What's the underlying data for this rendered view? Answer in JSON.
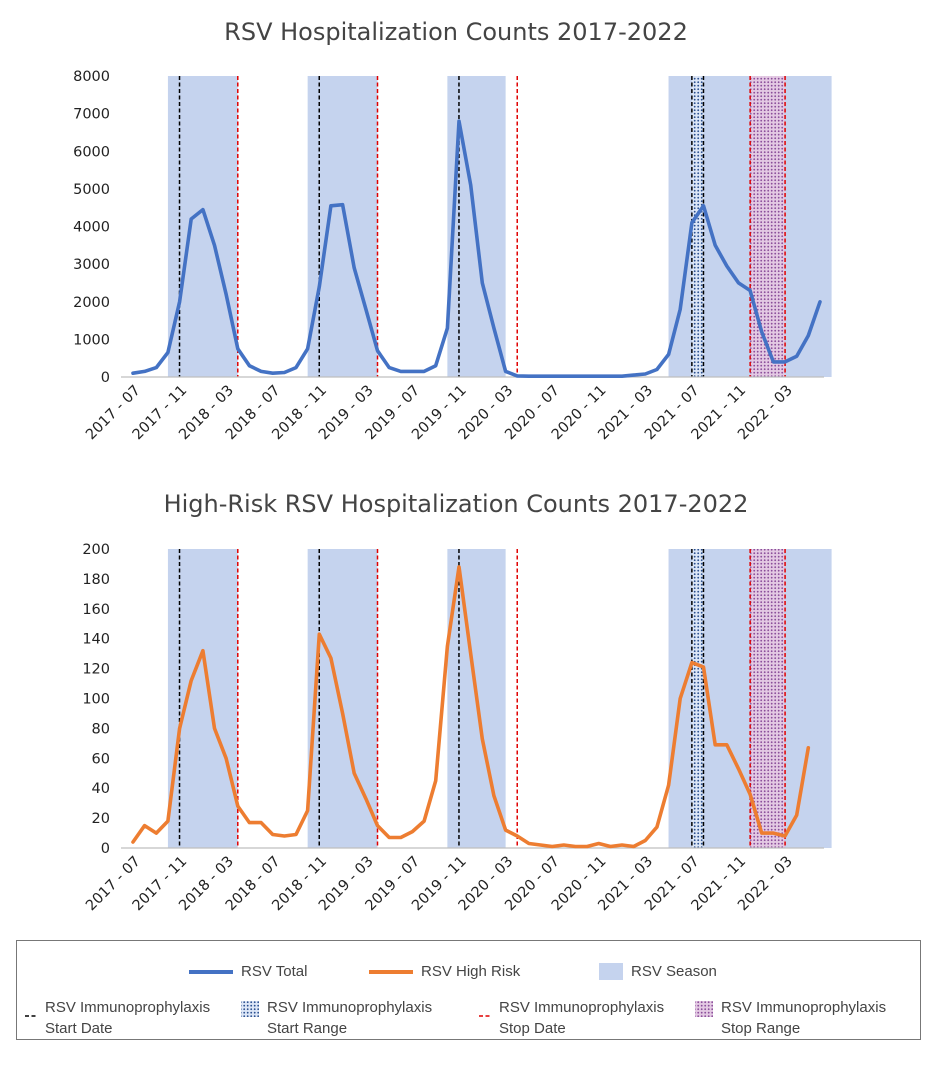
{
  "chart_data": [
    {
      "type": "line",
      "title": "RSV Hospitalization Counts 2017-2022",
      "ylim": [
        0,
        8000
      ],
      "yticks": [
        "0",
        "1000",
        "2000",
        "3000",
        "4000",
        "5000",
        "6000",
        "7000",
        "8000"
      ],
      "xtick_labels": [
        "2017 - 07",
        "2017 - 11",
        "2018 - 03",
        "2018 - 07",
        "2018 - 11",
        "2019 - 03",
        "2019 - 07",
        "2019 - 11",
        "2020 - 03",
        "2020 - 07",
        "2020 - 11",
        "2021 - 03",
        "2021 - 07",
        "2021 - 11",
        "2022 - 03"
      ],
      "series": [
        {
          "name": "RSV Total",
          "color": "#4472C4",
          "values": [
            100,
            150,
            250,
            650,
            2000,
            4200,
            4450,
            3500,
            2200,
            750,
            300,
            150,
            100,
            120,
            250,
            750,
            2400,
            4550,
            4580,
            2900,
            1800,
            700,
            250,
            150,
            150,
            150,
            300,
            1300,
            6800,
            5100,
            2500,
            1300,
            150,
            30,
            20,
            20,
            20,
            20,
            20,
            20,
            20,
            20,
            20,
            50,
            80,
            200,
            600,
            1800,
            4100,
            4550,
            3500,
            2950,
            2500,
            2300,
            1200,
            400,
            400,
            550,
            1100,
            2000
          ]
        }
      ]
    },
    {
      "type": "line",
      "title": "High-Risk RSV Hospitalization Counts 2017-2022",
      "ylim": [
        0,
        200
      ],
      "yticks": [
        "0",
        "20",
        "40",
        "60",
        "80",
        "100",
        "120",
        "140",
        "160",
        "180",
        "200"
      ],
      "xtick_labels": [
        "2017 - 07",
        "2017 - 11",
        "2018 - 03",
        "2018 - 07",
        "2018 - 11",
        "2019 - 03",
        "2019 - 07",
        "2019 - 11",
        "2020 - 03",
        "2020 - 07",
        "2020 - 11",
        "2021 - 03",
        "2021 - 07",
        "2021 - 11",
        "2022 - 03"
      ],
      "series": [
        {
          "name": "RSV High Risk",
          "color": "#ED7D31",
          "values": [
            4,
            15,
            10,
            18,
            80,
            112,
            132,
            80,
            60,
            28,
            17,
            17,
            9,
            8,
            9,
            25,
            143,
            127,
            90,
            50,
            33,
            15,
            7,
            7,
            11,
            18,
            45,
            135,
            188,
            130,
            73,
            35,
            12,
            8,
            3,
            2,
            1,
            2,
            1,
            1,
            3,
            1,
            2,
            1,
            5,
            14,
            42,
            100,
            124,
            121,
            69,
            69,
            53,
            36,
            10,
            10,
            8,
            22,
            67
          ]
        }
      ]
    }
  ],
  "seasons": [
    {
      "start": 2017.75,
      "end": 2018.25
    },
    {
      "start": 2018.75,
      "end": 2019.25
    },
    {
      "start": 2019.75,
      "end": 2020.167
    },
    {
      "start": 2021.333,
      "end": 2022.5
    }
  ],
  "start_dates": [
    2017.833,
    2018.833,
    2019.833,
    2021.5
  ],
  "stop_dates": [
    2018.25,
    2019.25,
    2020.25,
    2022.167
  ],
  "start_range": {
    "start": 2021.5,
    "end": 2021.583
  },
  "stop_range": {
    "start": 2021.917,
    "end": 2022.167
  },
  "colors": {
    "season": "#C5D3EE",
    "total": "#4472C4",
    "high_risk": "#ED7D31",
    "start_line": "#000000",
    "stop_line": "#E00000",
    "axis": "#BFBFBF"
  },
  "legend": {
    "total": "RSV Total",
    "high_risk": "RSV High Risk",
    "season": "RSV Season",
    "start_date": "RSV Immunoprophylaxis\nStart Date",
    "start_range": "RSV Immunoprophylaxis\nStart Range",
    "stop_date": "RSV Immunoprophylaxis\nStop Date",
    "stop_range": "RSV Immunoprophylaxis\nStop Range"
  }
}
